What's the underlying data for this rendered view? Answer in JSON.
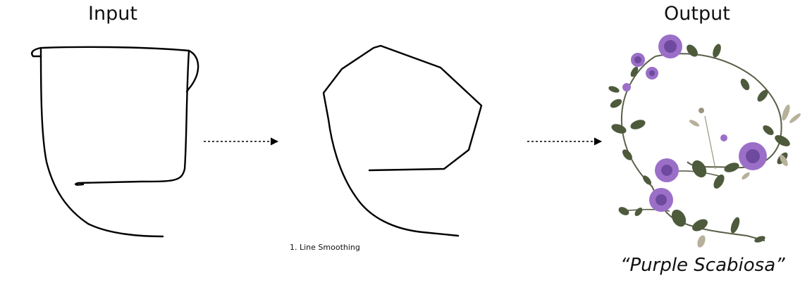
{
  "headings": {
    "input": "Input",
    "output": "Output"
  },
  "steps": [
    {
      "caption": "1. Line Smoothing"
    }
  ],
  "output": {
    "caption": "“Purple Scabiosa”"
  },
  "colors": {
    "stroke": "#000000",
    "flower": "#9b6fc8",
    "flower_dark": "#6e4a9e",
    "leaf": "#4e5a3c",
    "stem": "#5a5f48"
  }
}
